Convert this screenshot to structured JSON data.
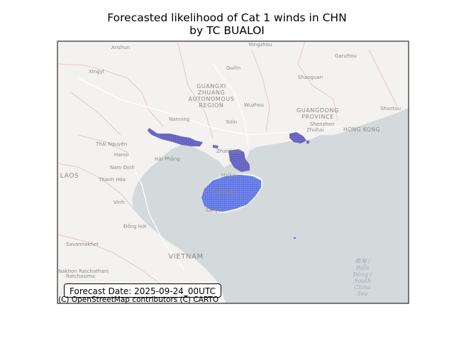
{
  "title_line1": "Forecasted likelihood of Cat 1 winds in CHN",
  "title_line2": "by TC BUALOI",
  "forecast_date_label": "Forecast Date: 2025-09-24_00UTC",
  "attribution": "(C) OpenStreetMap contributors (C) CARTO",
  "colors": {
    "land": "#f3f2f0",
    "water": "#d4d9dc",
    "boundary": "#e6c7cb",
    "swath_high": "#6f86f0",
    "swath_low": "#6f6cc8"
  },
  "map_labels": {
    "anshun": "Anshun",
    "yongzhou": "Yongzhou",
    "ganzhou": "Ganzhou",
    "xingyi": "Xingyi",
    "guilin": "Guilin",
    "shaoguan": "Shaoguan",
    "guangxi1": "GUANGXI",
    "guangxi2": "ZHUANG",
    "guangxi3": "AUTONOMOUS",
    "guangxi4": "REGION",
    "wuzhou": "Wuzhou",
    "guangdong1": "GUANGDONG",
    "guangdong2": "PROVINCE",
    "shantou": "Shantou",
    "nanning": "Nanning",
    "yulin": "Yulin",
    "shenzhen": "Shenzhen",
    "zhuhai": "Zhuhai",
    "hongkong": "HONG KONG",
    "thainguyen": "Thái Nguyên",
    "hanoi": "Hanoi",
    "haiphong": "Hải Phòng",
    "zhanjiang": "Zhanjiang",
    "namdinh": "Nam Định",
    "laos": "LAOS",
    "thanhhoa": "Thanh Hóa",
    "haikou": "Haikou",
    "hainan": "HAINAN",
    "vinh": "Vinh",
    "sanya": "Sanya",
    "donghoi": "Đồng Hới",
    "savannakhet": "Savannakhet",
    "vietnam": "VIETNAM",
    "nakhon1": "Nakhon Ratchathani",
    "nakhon2": "Ratchasima",
    "southsea1": "南海 /",
    "southsea2": "Biển",
    "southsea3": "Đông /",
    "southsea4": "South",
    "southsea5": "China",
    "southsea6": "Sea"
  }
}
